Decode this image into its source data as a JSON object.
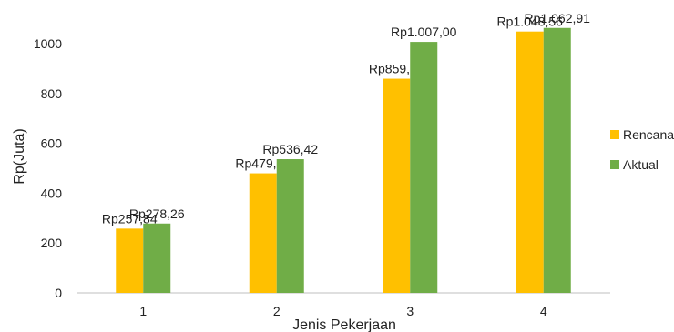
{
  "chart_data": {
    "type": "bar",
    "categories": [
      "1",
      "2",
      "3",
      "4"
    ],
    "series": [
      {
        "name": "Rencana",
        "values": [
          257.84,
          479.71,
          859.29,
          1048.56
        ],
        "labels": [
          "Rp257,84",
          "Rp479,71",
          "Rp859,29",
          "Rp1.048,56"
        ],
        "color": "#FFC000"
      },
      {
        "name": "Aktual",
        "values": [
          278.26,
          536.42,
          1007.0,
          1062.91
        ],
        "labels": [
          "Rp278,26",
          "Rp536,42",
          "Rp1.007,00",
          "Rp1.062,91"
        ],
        "color": "#70AD47"
      }
    ],
    "xlabel": "Jenis Pekerjaan",
    "ylabel": "Rp(Juta)",
    "ylim": [
      0,
      1100
    ],
    "yticks": [
      "0",
      "200",
      "400",
      "600",
      "800",
      "1000"
    ],
    "grid": false,
    "legend_position": "right"
  }
}
